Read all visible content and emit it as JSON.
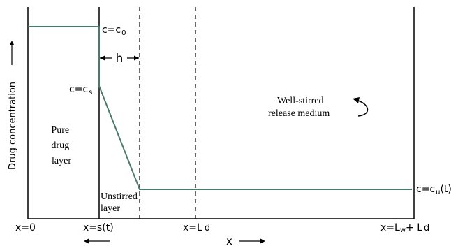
{
  "colors": {
    "profile": "#4a7a68",
    "axis": "#000000"
  },
  "y_axis": {
    "label": "Drug concentration",
    "arrow": "up-arrow"
  },
  "x_axis": {
    "label": "x",
    "arrow": "right-arrow"
  },
  "curve_labels": {
    "c0": {
      "main": "c=c",
      "sub": "0"
    },
    "cs": {
      "main": "c=c",
      "sub": "s"
    },
    "cu": {
      "main": "c=c",
      "sub": "u",
      "tail": "(t)"
    }
  },
  "h_label": "h",
  "regions": {
    "pure_drug": [
      "Pure",
      "drug",
      "layer"
    ],
    "unstirred": [
      "Unstirred",
      "layer"
    ],
    "medium": [
      "Well-stirred",
      "release medium"
    ]
  },
  "x_ticks": {
    "x0": "x=0",
    "xs": "x=s(t)",
    "xLd": {
      "main": "x=L",
      "sub": "d"
    },
    "xLwLd": {
      "main": "x=L",
      "sub1": "w",
      "mid": "+ L",
      "sub2": "d"
    }
  },
  "icons": {
    "stir": "curved-arrow-icon",
    "boundary_motion": "left-arrow-icon"
  }
}
